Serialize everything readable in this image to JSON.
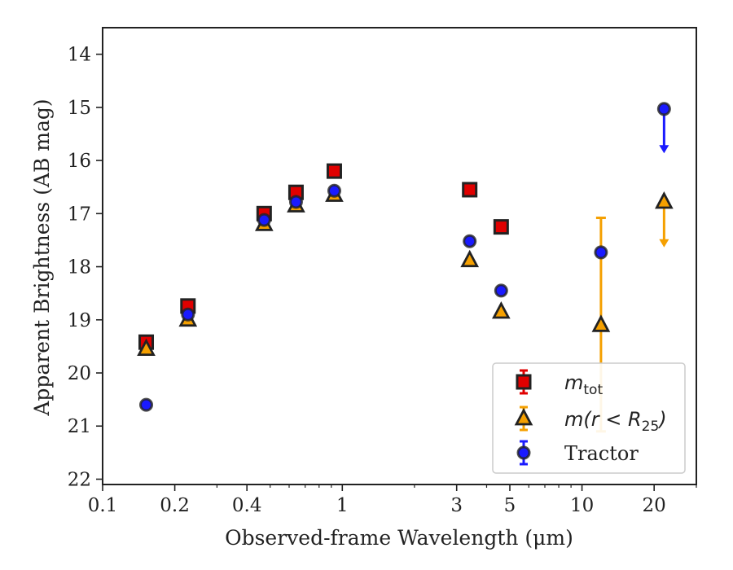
{
  "chart_data": {
    "type": "scatter",
    "xlabel": "Observed-frame Wavelength (μm)",
    "ylabel": "Apparent Brightness (AB mag)",
    "x_scale": "log",
    "xlim": [
      0.1,
      30
    ],
    "ylim": [
      22.1,
      13.5
    ],
    "y_inverted": true,
    "x_ticks": [
      0.1,
      0.2,
      0.4,
      1,
      3,
      5,
      10,
      20
    ],
    "x_tick_labels": [
      "0.1",
      "0.2",
      "0.4",
      "1",
      "3",
      "5",
      "10",
      "20"
    ],
    "y_ticks": [
      14,
      15,
      16,
      17,
      18,
      19,
      20,
      21,
      22
    ],
    "y_tick_labels": [
      "14",
      "15",
      "16",
      "17",
      "18",
      "19",
      "20",
      "21",
      "22"
    ],
    "legend_position": "lower-right",
    "series": [
      {
        "name": "m_tot",
        "legend_main": "m",
        "legend_sub": "tot",
        "marker": "square",
        "color": "#e00000",
        "points": [
          {
            "x": 0.152,
            "y": 19.42
          },
          {
            "x": 0.227,
            "y": 18.74
          },
          {
            "x": 0.472,
            "y": 17.0
          },
          {
            "x": 0.641,
            "y": 16.6
          },
          {
            "x": 0.926,
            "y": 16.2
          },
          {
            "x": 3.4,
            "y": 16.55
          },
          {
            "x": 4.6,
            "y": 17.25
          }
        ]
      },
      {
        "name": "m(r < R25)",
        "legend_main": "m(r < R",
        "legend_sub": "25",
        "legend_tail": ")",
        "marker": "triangle",
        "color": "#f5a000",
        "points": [
          {
            "x": 0.152,
            "y": 19.55
          },
          {
            "x": 0.227,
            "y": 19.0
          },
          {
            "x": 0.472,
            "y": 17.2
          },
          {
            "x": 0.641,
            "y": 16.85
          },
          {
            "x": 0.926,
            "y": 16.65
          },
          {
            "x": 3.4,
            "y": 17.88
          },
          {
            "x": 4.6,
            "y": 18.85
          },
          {
            "x": 12.0,
            "y": 19.1,
            "yerr_low": 17.08,
            "yerr_high": 21.1
          },
          {
            "x": 22.0,
            "y": 16.78,
            "upper_limit_to": 17.62
          }
        ]
      },
      {
        "name": "Tractor",
        "legend_main": "Tractor",
        "marker": "circle",
        "color": "#1a1aff",
        "points": [
          {
            "x": 0.152,
            "y": 20.6
          },
          {
            "x": 0.227,
            "y": 18.9
          },
          {
            "x": 0.472,
            "y": 17.12
          },
          {
            "x": 0.641,
            "y": 16.78
          },
          {
            "x": 0.926,
            "y": 16.57
          },
          {
            "x": 3.4,
            "y": 17.52
          },
          {
            "x": 4.6,
            "y": 18.45
          },
          {
            "x": 12.0,
            "y": 17.73
          },
          {
            "x": 22.0,
            "y": 15.03,
            "upper_limit_to": 15.85
          }
        ]
      }
    ]
  }
}
